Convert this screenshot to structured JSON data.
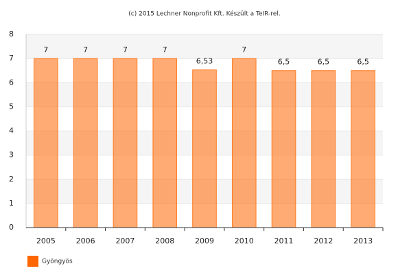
{
  "chart_data": {
    "type": "bar",
    "title": "(c) 2015 Lechner Nonprofit Kft. Készült a TeIR-rel.",
    "categories": [
      "2005",
      "2006",
      "2007",
      "2008",
      "2009",
      "2010",
      "2011",
      "2012",
      "2013"
    ],
    "series": [
      {
        "name": "Gyöngyös",
        "color": "#ff6600",
        "values": [
          7,
          7,
          7,
          7,
          6.53,
          7,
          6.5,
          6.5,
          6.5
        ],
        "value_labels": [
          "7",
          "7",
          "7",
          "7",
          "6,53",
          "7",
          "6,5",
          "6,5",
          "6,5"
        ]
      }
    ],
    "ylim": [
      0,
      8
    ],
    "yticks": [
      0,
      1,
      2,
      3,
      4,
      5,
      6,
      7,
      8
    ],
    "grid": true
  }
}
